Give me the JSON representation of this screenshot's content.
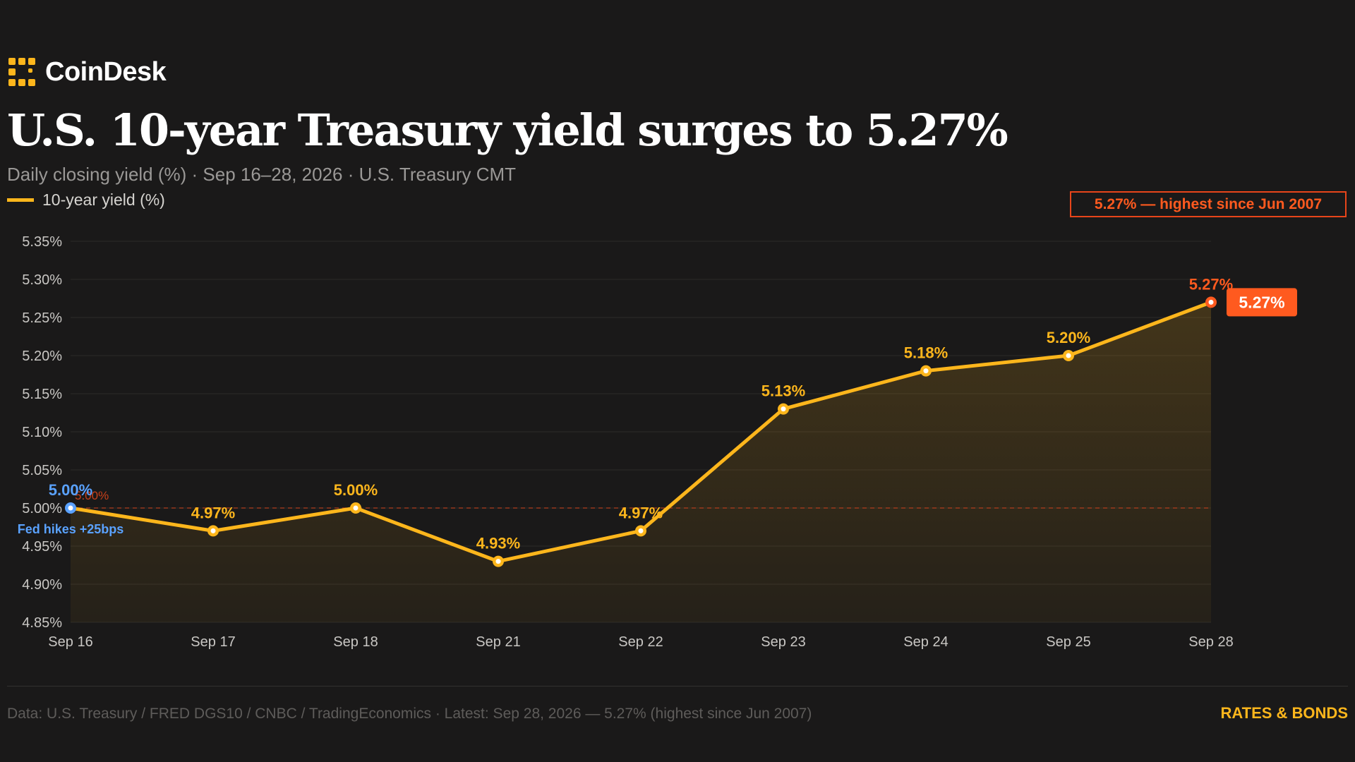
{
  "brand": {
    "name": "CoinDesk",
    "logo_icon": "coindesk-logo-icon",
    "color": "#fdb61c"
  },
  "header": {
    "title": "U.S. 10-year Treasury yield surges to 5.27%",
    "subtitle": "Daily closing yield (%) · Sep 16–28, 2026 · U.S. Treasury CMT"
  },
  "callout": {
    "text": "5.27% — highest since Jun 2007",
    "color": "#ff5a1f"
  },
  "footer": {
    "source": "Data: U.S. Treasury / FRED DGS10 / CNBC / TradingEconomics · Latest: Sep 28, 2026 — 5.27% (highest since Jun 2007)",
    "tag": "RATES & BONDS"
  },
  "colors": {
    "line": "#fdb61c",
    "first_point": "#5aa2ff",
    "last_point": "#ff5a1f",
    "reference_line": "#c8401a",
    "background": "#1a1919"
  },
  "chart_data": {
    "type": "line",
    "categories": [
      "Sep 16",
      "Sep 17",
      "Sep 18",
      "Sep 21",
      "Sep 22",
      "Sep 23",
      "Sep 24",
      "Sep 25",
      "Sep 28"
    ],
    "series": [
      {
        "name": "10-year yield (%)",
        "values": [
          5.0,
          4.97,
          5.0,
          4.93,
          4.97,
          5.13,
          5.18,
          5.2,
          5.27
        ],
        "labels": [
          "5.00%",
          "4.97%",
          "5.00%",
          "4.93%",
          "4.97%",
          "5.13%",
          "5.18%",
          "5.20%",
          "5.27%"
        ]
      }
    ],
    "ylim": [
      4.85,
      5.35
    ],
    "yticks": [
      4.85,
      4.9,
      4.95,
      5.0,
      5.05,
      5.1,
      5.15,
      5.2,
      5.25,
      5.3,
      5.35
    ],
    "ytick_labels": [
      "4.85%",
      "4.90%",
      "4.95%",
      "5.00%",
      "5.05%",
      "5.10%",
      "5.15%",
      "5.20%",
      "5.25%",
      "5.30%",
      "5.35%"
    ],
    "reference_line": {
      "value": 5.0,
      "label": "5.00%"
    },
    "annotations": [
      {
        "category": "Sep 16",
        "text": "Fed hikes +25bps"
      }
    ],
    "end_badge": "5.27%",
    "grid": true,
    "legend": "top-left",
    "area_fill": true
  }
}
